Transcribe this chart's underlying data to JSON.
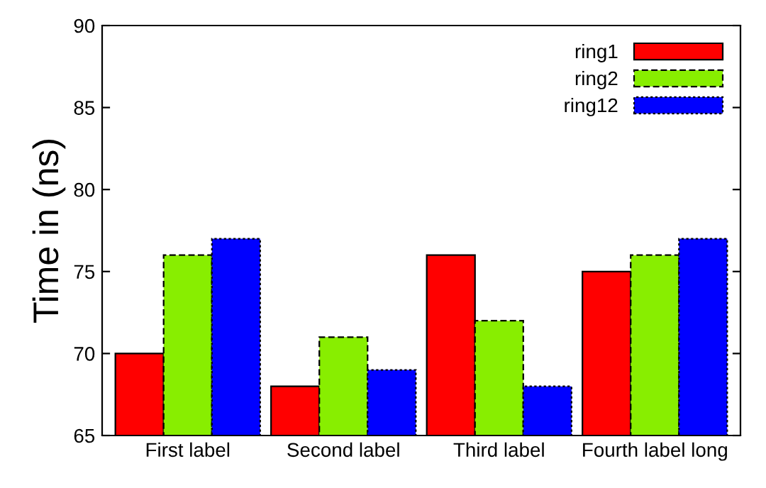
{
  "chart_data": {
    "type": "bar",
    "ylabel": "Time in (ns)",
    "categories": [
      "First label",
      "Second label",
      "Third label",
      "Fourth label long"
    ],
    "series": [
      {
        "name": "ring1",
        "color": "#ff0000",
        "line_style": "solid",
        "values": [
          70,
          68,
          76,
          75
        ]
      },
      {
        "name": "ring2",
        "color": "#88ee00",
        "line_style": "dashed",
        "values": [
          76,
          71,
          72,
          76
        ]
      },
      {
        "name": "ring12",
        "color": "#0000ff",
        "line_style": "dotted",
        "values": [
          77,
          69,
          68,
          77
        ]
      }
    ],
    "ylim": [
      65,
      90
    ],
    "yticks": [
      65,
      70,
      75,
      80,
      85,
      90
    ],
    "grid": false,
    "legend": "top right"
  }
}
